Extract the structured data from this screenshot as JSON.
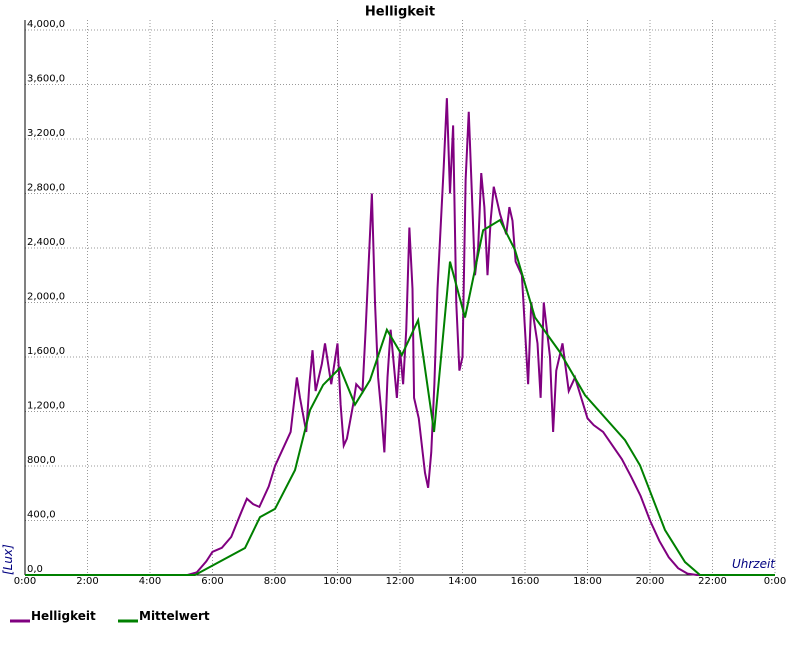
{
  "chart_data": {
    "type": "line",
    "title": "Helligkeit",
    "x_label": "Uhrzeit",
    "y_label": "[Lux]",
    "xlim": [
      0,
      24
    ],
    "ylim": [
      0,
      4000
    ],
    "grid": true,
    "legend": "bottom-left",
    "xticks": [
      {
        "value": 0,
        "label": "0:00"
      },
      {
        "value": 2,
        "label": "2:00"
      },
      {
        "value": 4,
        "label": "4:00"
      },
      {
        "value": 6,
        "label": "6:00"
      },
      {
        "value": 8,
        "label": "8:00"
      },
      {
        "value": 10,
        "label": "10:00"
      },
      {
        "value": 12,
        "label": "12:00"
      },
      {
        "value": 14,
        "label": "14:00"
      },
      {
        "value": 16,
        "label": "16:00"
      },
      {
        "value": 18,
        "label": "18:00"
      },
      {
        "value": 20,
        "label": "20:00"
      },
      {
        "value": 22,
        "label": "22:00"
      },
      {
        "value": 24,
        "label": "0:00"
      }
    ],
    "yticks": [
      {
        "value": 0,
        "label": "0,0"
      },
      {
        "value": 400,
        "label": "400,0"
      },
      {
        "value": 800,
        "label": "800,0"
      },
      {
        "value": 1200,
        "label": "1,200,0"
      },
      {
        "value": 1600,
        "label": "1,600,0"
      },
      {
        "value": 2000,
        "label": "2,000,0"
      },
      {
        "value": 2400,
        "label": "2,400,0"
      },
      {
        "value": 2800,
        "label": "2,800,0"
      },
      {
        "value": 3200,
        "label": "3,200,0"
      },
      {
        "value": 3600,
        "label": "3,600,0"
      },
      {
        "value": 4000,
        "label": "4,000,0"
      }
    ],
    "series": [
      {
        "name": "Helligkeit",
        "color": "#800080",
        "x": [
          0,
          5.2,
          5.5,
          5.8,
          6.0,
          6.3,
          6.6,
          6.9,
          7.1,
          7.3,
          7.5,
          7.8,
          8.0,
          8.3,
          8.5,
          8.7,
          8.8,
          9.0,
          9.1,
          9.2,
          9.3,
          9.5,
          9.6,
          9.8,
          10.0,
          10.1,
          10.2,
          10.3,
          10.5,
          10.6,
          10.8,
          10.9,
          11.0,
          11.1,
          11.2,
          11.3,
          11.4,
          11.5,
          11.6,
          11.7,
          11.8,
          11.9,
          12.0,
          12.1,
          12.2,
          12.3,
          12.4,
          12.45,
          12.6,
          12.8,
          12.9,
          13.0,
          13.1,
          13.2,
          13.4,
          13.5,
          13.6,
          13.7,
          13.8,
          13.9,
          14.0,
          14.1,
          14.2,
          14.3,
          14.4,
          14.5,
          14.6,
          14.7,
          14.8,
          14.9,
          15.0,
          15.2,
          15.4,
          15.5,
          15.6,
          15.7,
          15.9,
          16.0,
          16.1,
          16.2,
          16.4,
          16.5,
          16.6,
          16.8,
          16.9,
          17.0,
          17.2,
          17.4,
          17.6,
          17.8,
          18.0,
          18.2,
          18.5,
          18.8,
          19.1,
          19.4,
          19.7,
          20.0,
          20.3,
          20.6,
          20.9,
          21.2,
          21.5,
          24
        ],
        "values": [
          0,
          0,
          20,
          100,
          170,
          200,
          280,
          450,
          560,
          520,
          500,
          650,
          800,
          950,
          1050,
          1450,
          1300,
          1050,
          1400,
          1650,
          1350,
          1550,
          1700,
          1400,
          1700,
          1250,
          950,
          1000,
          1250,
          1400,
          1350,
          1800,
          2300,
          2800,
          2000,
          1450,
          1200,
          900,
          1450,
          1800,
          1550,
          1300,
          1650,
          1400,
          1800,
          2550,
          2100,
          1300,
          1150,
          750,
          640,
          900,
          1400,
          2100,
          3000,
          3500,
          2800,
          3300,
          2000,
          1500,
          1600,
          2900,
          3400,
          2800,
          2200,
          2400,
          2950,
          2700,
          2200,
          2600,
          2850,
          2650,
          2500,
          2700,
          2600,
          2300,
          2200,
          1800,
          1400,
          2000,
          1700,
          1300,
          2000,
          1600,
          1050,
          1500,
          1700,
          1350,
          1450,
          1300,
          1150,
          1100,
          1050,
          950,
          850,
          720,
          580,
          400,
          250,
          130,
          50,
          10,
          0,
          0
        ]
      },
      {
        "name": "Mittelwert",
        "color": "#008000",
        "x": [
          0,
          5.44,
          7.04,
          7.52,
          8.0,
          8.64,
          9.12,
          9.54,
          10.08,
          10.56,
          11.04,
          11.58,
          12.06,
          12.58,
          13.09,
          13.6,
          14.08,
          14.66,
          15.2,
          15.68,
          16.32,
          17.12,
          17.92,
          19.2,
          19.68,
          20.48,
          21.12,
          21.6,
          24
        ],
        "values": [
          0,
          0,
          198,
          425,
          485,
          770,
          1210,
          1395,
          1520,
          1250,
          1430,
          1800,
          1615,
          1870,
          1050,
          2300,
          1890,
          2530,
          2605,
          2385,
          1890,
          1635,
          1320,
          990,
          805,
          330,
          95,
          0,
          0
        ]
      }
    ]
  }
}
